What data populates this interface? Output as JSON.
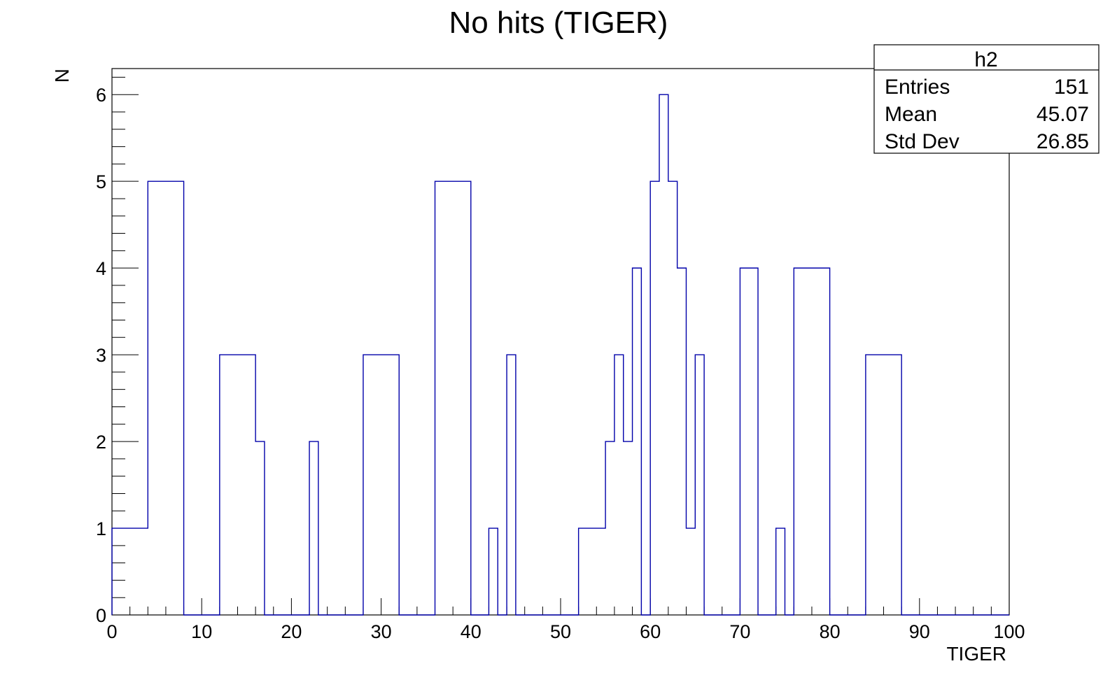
{
  "chart_data": {
    "type": "bar",
    "style": "step-histogram",
    "title": "No hits (TIGER)",
    "xlabel": "TIGER",
    "ylabel": "N",
    "xlim": [
      0,
      100
    ],
    "ylim": [
      0,
      6.3
    ],
    "bin_width": 1,
    "x_ticks": [
      0,
      10,
      20,
      30,
      40,
      50,
      60,
      70,
      80,
      90,
      100
    ],
    "y_ticks": [
      0,
      1,
      2,
      3,
      4,
      5,
      6
    ],
    "line_color": "#0000aa",
    "grid": false,
    "bin_low_edges": [
      0,
      1,
      2,
      3,
      4,
      5,
      6,
      7,
      8,
      9,
      10,
      11,
      12,
      13,
      14,
      15,
      16,
      17,
      18,
      19,
      20,
      21,
      22,
      23,
      24,
      25,
      26,
      27,
      28,
      29,
      30,
      31,
      32,
      33,
      34,
      35,
      36,
      37,
      38,
      39,
      40,
      41,
      42,
      43,
      44,
      45,
      46,
      47,
      48,
      49,
      50,
      51,
      52,
      53,
      54,
      55,
      56,
      57,
      58,
      59,
      60,
      61,
      62,
      63,
      64,
      65,
      66,
      67,
      68,
      69,
      70,
      71,
      72,
      73,
      74,
      75,
      76,
      77,
      78,
      79,
      80,
      81,
      82,
      83,
      84,
      85,
      86,
      87,
      88,
      89,
      90,
      91,
      92,
      93,
      94,
      95,
      96,
      97,
      98,
      99
    ],
    "values": [
      1,
      1,
      1,
      1,
      5,
      5,
      5,
      5,
      0,
      0,
      0,
      0,
      3,
      3,
      3,
      3,
      2,
      0,
      0,
      0,
      0,
      0,
      2,
      0,
      0,
      0,
      0,
      0,
      3,
      3,
      3,
      3,
      0,
      0,
      0,
      0,
      5,
      5,
      5,
      5,
      0,
      0,
      1,
      0,
      3,
      0,
      0,
      0,
      0,
      0,
      0,
      0,
      1,
      1,
      1,
      2,
      3,
      2,
      4,
      0,
      5,
      6,
      5,
      4,
      1,
      3,
      0,
      0,
      0,
      0,
      4,
      4,
      0,
      0,
      1,
      0,
      4,
      4,
      4,
      4,
      0,
      0,
      0,
      0,
      3,
      3,
      3,
      3,
      0,
      0,
      0,
      0,
      0,
      0,
      0,
      0,
      0,
      0,
      0,
      0
    ],
    "stats_box": {
      "name": "h2",
      "placement": "top-right",
      "rows": [
        {
          "label": "Entries",
          "value": "151"
        },
        {
          "label": "Mean",
          "value": "45.07"
        },
        {
          "label": "Std Dev",
          "value": "26.85"
        }
      ]
    }
  }
}
